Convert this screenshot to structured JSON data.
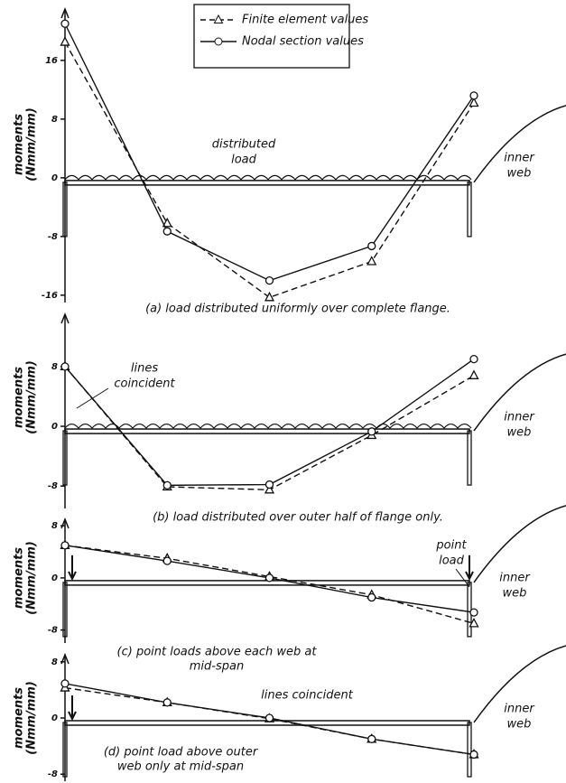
{
  "chart_data": [
    {
      "type": "line",
      "y_label": [
        "moments",
        "(Nmm/mm)"
      ],
      "caption": [
        "(a) load distributed uniformly over complete flange."
      ],
      "categories": [
        null,
        null,
        null,
        null,
        null
      ],
      "ylim": [
        -17,
        23
      ],
      "yticks": [
        16,
        8,
        0,
        -8,
        -16
      ],
      "legend": "top-center",
      "annotations": [
        [
          "distributed",
          "load"
        ],
        [
          "inner",
          "web"
        ]
      ],
      "series": [
        {
          "name": "Finite element values",
          "color": "#111111",
          "marker": "triangle",
          "dashed": true,
          "values": [
            18.5,
            -6.2,
            -16.3,
            -11.4,
            10.2
          ]
        },
        {
          "name": "Nodal section values",
          "color": "#111111",
          "marker": "circle",
          "dashed": false,
          "values": [
            21,
            -7.3,
            -14,
            -9.3,
            11.2
          ]
        }
      ]
    },
    {
      "type": "line",
      "y_label": [
        "moments",
        "(Nmm/mm)"
      ],
      "caption": [
        "(b) load distributed over outer half of flange only."
      ],
      "categories": [
        null,
        null,
        null,
        null,
        null
      ],
      "ylim": [
        -11,
        15
      ],
      "yticks": [
        8,
        0,
        -8
      ],
      "annotations": [
        [
          "lines",
          "coincident"
        ],
        [
          "inner",
          "web"
        ]
      ],
      "series": [
        {
          "color": "#111111",
          "marker": "triangle",
          "dashed": true,
          "values": [
            8,
            -8.1,
            -8.5,
            -1.2,
            6.8
          ]
        },
        {
          "color": "#111111",
          "marker": "circle",
          "dashed": false,
          "values": [
            8,
            -7.9,
            -7.8,
            -0.7,
            9
          ]
        }
      ]
    },
    {
      "type": "line",
      "y_label": [
        "moments",
        "(Nmm/mm)"
      ],
      "caption": [
        "(c) point loads above each web at",
        "mid-span"
      ],
      "categories": [
        null,
        null,
        null,
        null,
        null
      ],
      "ylim": [
        -10,
        9
      ],
      "yticks": [
        8,
        0,
        -8
      ],
      "annotations": [
        [
          "point",
          "load"
        ],
        [
          "inner",
          "web"
        ]
      ],
      "series": [
        {
          "color": "#111111",
          "marker": "triangle",
          "dashed": true,
          "values": [
            5,
            3,
            0.2,
            -2.6,
            -7
          ]
        },
        {
          "color": "#111111",
          "marker": "circle",
          "dashed": false,
          "values": [
            5,
            2.6,
            0,
            -3,
            -5.3
          ]
        }
      ]
    },
    {
      "type": "line",
      "y_label": [
        "moments",
        "(Nmm/mm)"
      ],
      "caption": [
        "(d) point load above outer",
        "web only at mid-span"
      ],
      "categories": [
        null,
        null,
        null,
        null,
        null
      ],
      "ylim": [
        -9,
        9
      ],
      "yticks": [
        8,
        0,
        -8
      ],
      "annotations": [
        [
          "lines coincident"
        ],
        [
          "inner",
          "web"
        ]
      ],
      "series": [
        {
          "color": "#111111",
          "marker": "triangle",
          "dashed": true,
          "values": [
            4.3,
            2.2,
            -0.1,
            -3,
            -5.2
          ]
        },
        {
          "color": "#111111",
          "marker": "circle",
          "dashed": false,
          "values": [
            4.9,
            2.2,
            0,
            -3,
            -5.2
          ]
        }
      ]
    }
  ]
}
